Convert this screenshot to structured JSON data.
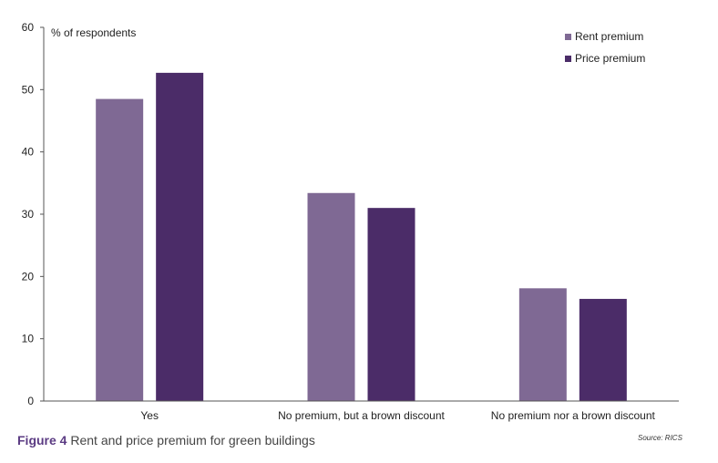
{
  "chart_data": {
    "type": "bar",
    "ylabel": "% of respondents",
    "ylim": [
      0,
      60
    ],
    "yticks": [
      0,
      10,
      20,
      30,
      40,
      50,
      60
    ],
    "grid": false,
    "legend_position": "top-right",
    "categories": [
      "Yes",
      "No premium, but a brown discount",
      "No premium nor a brown discount"
    ],
    "series": [
      {
        "name": "Rent premium",
        "color": "#7f6994",
        "values": [
          48.5,
          33.4,
          18.1
        ]
      },
      {
        "name": "Price premium",
        "color": "#4b2c68",
        "values": [
          52.7,
          31.0,
          16.4
        ]
      }
    ]
  },
  "caption": {
    "figure_number": "Figure 4",
    "text": "Rent and price premium for green buildings"
  },
  "source": "Source: RICS"
}
